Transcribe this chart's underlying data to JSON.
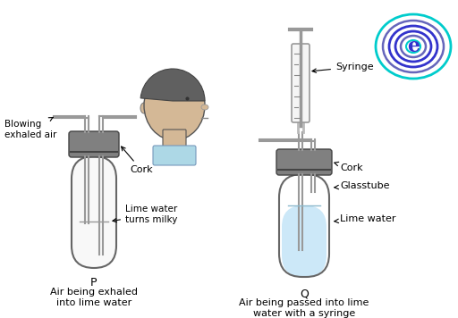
{
  "bg_color": "#ffffff",
  "left_labels": {
    "blowing": "Blowing\nexhaled air",
    "cork": "Cork",
    "limewater": "Lime water\nturns milky",
    "P": "P",
    "caption": "Air being exhaled\ninto lime water"
  },
  "right_labels": {
    "syringe": "Syringe",
    "cork": "Cork",
    "glasstube": "Glasstube",
    "limewater": "Lime water",
    "Q": "Q",
    "caption": "Air being passed into lime\nwater with a syringe"
  },
  "tube_left_color": "#f8f8f8",
  "tube_right_water_color": "#cce8f8",
  "cork_color": "#808080",
  "cork_color2": "#6a6a6a",
  "glass_color": "#cccccc",
  "syringe_fill": "#f5f5f5",
  "head_skin": "#d4b896",
  "head_hair": "#606060",
  "head_collar": "#add8e6",
  "logo_outer": "#00cccc",
  "logo_inner": "#3333cc",
  "logo_mid": "#6666bb"
}
